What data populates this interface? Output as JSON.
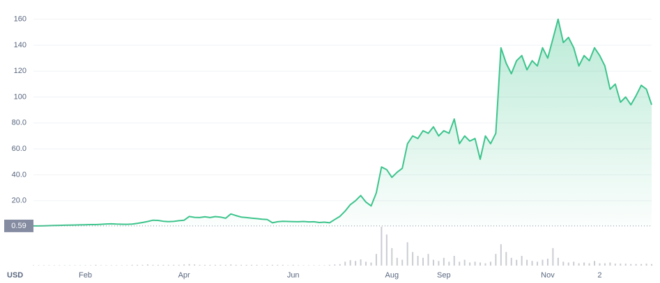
{
  "chart_data": {
    "type": "line",
    "currency": "USD",
    "categories": [
      null,
      null,
      null,
      null,
      null,
      null,
      null,
      null,
      null,
      null,
      "Feb",
      null,
      null,
      null,
      null,
      null,
      null,
      null,
      null,
      null,
      null,
      null,
      null,
      null,
      null,
      null,
      null,
      null,
      null,
      "Apr",
      null,
      null,
      null,
      null,
      null,
      null,
      null,
      null,
      null,
      null,
      null,
      null,
      null,
      null,
      null,
      null,
      null,
      null,
      null,
      null,
      "Jun",
      null,
      null,
      null,
      null,
      null,
      null,
      null,
      null,
      null,
      null,
      null,
      null,
      null,
      null,
      null,
      null,
      null,
      null,
      "Aug",
      null,
      null,
      null,
      null,
      null,
      null,
      null,
      null,
      null,
      "Sep",
      null,
      null,
      null,
      null,
      null,
      null,
      null,
      null,
      null,
      null,
      null,
      null,
      null,
      null,
      null,
      null,
      null,
      null,
      null,
      "Nov",
      null,
      null,
      null,
      null,
      null,
      null,
      null,
      null,
      null,
      "2",
      null,
      null,
      null,
      null,
      null,
      null,
      null,
      null,
      null,
      null
    ],
    "values": [
      0.59,
      0.6,
      0.7,
      0.8,
      0.9,
      1.0,
      1.1,
      1.2,
      1.3,
      1.4,
      1.5,
      1.6,
      1.6,
      1.8,
      2.1,
      2.2,
      2.0,
      1.9,
      1.8,
      2.0,
      2.6,
      3.2,
      4.0,
      5.0,
      4.8,
      4.2,
      3.9,
      4.1,
      4.6,
      5.0,
      7.9,
      7.2,
      7.0,
      7.6,
      7.0,
      7.8,
      7.4,
      6.5,
      9.8,
      8.5,
      7.4,
      7.0,
      6.6,
      6.2,
      5.8,
      5.5,
      3.0,
      3.8,
      4.2,
      4.0,
      3.9,
      3.8,
      4.0,
      3.7,
      3.8,
      3.2,
      3.5,
      3.0,
      5.5,
      8.0,
      12,
      17,
      20,
      24,
      19,
      16,
      26,
      46,
      44,
      38,
      42,
      45,
      64,
      70,
      68,
      74,
      72,
      77,
      70,
      74,
      72,
      83,
      64,
      70,
      66,
      68,
      52,
      70,
      64,
      72,
      138,
      126,
      118,
      128,
      132,
      121,
      128,
      124,
      138,
      130,
      145,
      160,
      142,
      146,
      138,
      124,
      132,
      128,
      138,
      132,
      124,
      106,
      110,
      96,
      100,
      94,
      101,
      109,
      106,
      94
    ],
    "color": "#3cc48c",
    "volumes": [
      1,
      1,
      1,
      1,
      1,
      1,
      1,
      1,
      1,
      1,
      1,
      1,
      2,
      1,
      1,
      1,
      1,
      1,
      1,
      2,
      2,
      2,
      3,
      2,
      2,
      2,
      2,
      2,
      2,
      3,
      4,
      3,
      2,
      2,
      2,
      2,
      2,
      2,
      3,
      2,
      2,
      2,
      2,
      2,
      1,
      2,
      2,
      2,
      2,
      1,
      2,
      1,
      1,
      1,
      1,
      1,
      1,
      2,
      3,
      4,
      10,
      14,
      12,
      16,
      10,
      8,
      30,
      100,
      80,
      45,
      20,
      15,
      60,
      35,
      25,
      20,
      30,
      15,
      12,
      20,
      10,
      25,
      10,
      15,
      8,
      10,
      8,
      6,
      10,
      30,
      55,
      35,
      20,
      15,
      25,
      15,
      12,
      10,
      15,
      18,
      45,
      20,
      10,
      8,
      10,
      6,
      8,
      6,
      12,
      6,
      6,
      8,
      5,
      5,
      5,
      4,
      4,
      4,
      5,
      4
    ],
    "volume_color": "#c9ccd1",
    "ylim": [
      0,
      170
    ],
    "yticks": [
      {
        "value": 20,
        "label": "20.0"
      },
      {
        "value": 40,
        "label": "40.0"
      },
      {
        "value": 60,
        "label": "60.0"
      },
      {
        "value": 80,
        "label": "80.0"
      },
      100,
      120,
      140,
      160
    ],
    "marker": {
      "value": 0.59,
      "label": "0.59"
    },
    "grid": true
  }
}
